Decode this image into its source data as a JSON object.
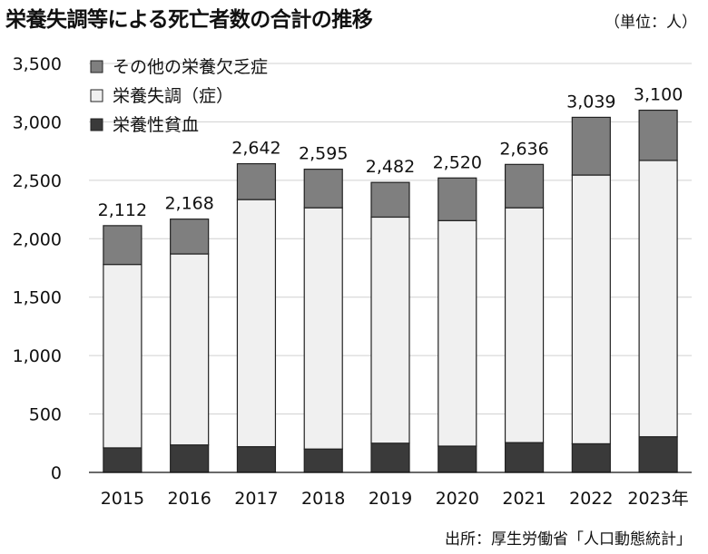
{
  "chart_data": {
    "type": "bar",
    "stacked": true,
    "title": "栄養失調等による死亡者数の合計の推移",
    "unit_label": "（単位：人）",
    "source": "出所：厚生労働省「人口動態統計」",
    "categories": [
      "2015",
      "2016",
      "2017",
      "2018",
      "2019",
      "2020",
      "2021",
      "2022",
      "2023年"
    ],
    "series": [
      {
        "name": "栄養性貧血",
        "color": "#3a3a3a",
        "values": [
          210,
          235,
          220,
          200,
          250,
          225,
          255,
          245,
          305
        ]
      },
      {
        "name": "栄養失調（症）",
        "color": "#f0f0f0",
        "values": [
          1570,
          1635,
          2115,
          2065,
          1935,
          1930,
          2010,
          2300,
          2365
        ]
      },
      {
        "name": "その他の栄養欠乏症",
        "color": "#7f7f7f",
        "values": [
          332,
          298,
          307,
          330,
          297,
          365,
          371,
          494,
          430
        ]
      }
    ],
    "totals": [
      2112,
      2168,
      2642,
      2595,
      2482,
      2520,
      2636,
      3039,
      3100
    ],
    "total_labels": [
      "2,112",
      "2,168",
      "2,642",
      "2,595",
      "2,482",
      "2,520",
      "2,636",
      "3,039",
      "3,100"
    ],
    "legend_order": [
      "その他の栄養欠乏症",
      "栄養失調（症）",
      "栄養性貧血"
    ],
    "ylim": [
      0,
      3500
    ],
    "yticks": [
      0,
      500,
      1000,
      1500,
      2000,
      2500,
      3000,
      3500
    ],
    "ytick_labels": [
      "0",
      "500",
      "1,000",
      "1,500",
      "2,000",
      "2,500",
      "3,000",
      "3,500"
    ],
    "grid": true,
    "legend_position": "top-left"
  }
}
